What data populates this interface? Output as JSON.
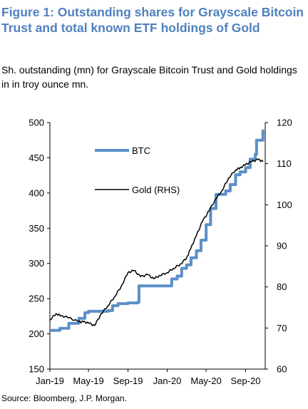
{
  "figure": {
    "title": "Figure 1: Outstanding shares for Grayscale Bitcoin Trust and total known ETF holdings of Gold",
    "subtitle": "Sh. outstanding (mn) for Grayscale Bitcoin Trust and Gold holdings in in troy ounce mn.",
    "source": "Source: Bloomberg, J.P. Morgan."
  },
  "chart_data": {
    "type": "line",
    "x_tick_labels": [
      "Jan-19",
      "May-19",
      "Sep-19",
      "Jan-20",
      "May-20",
      "Sep-20"
    ],
    "y_left": {
      "range": [
        150,
        500
      ],
      "ticks": [
        150,
        200,
        250,
        300,
        350,
        400,
        450,
        500
      ]
    },
    "y_right": {
      "range": [
        60,
        120
      ],
      "ticks": [
        60,
        70,
        80,
        90,
        100,
        110,
        120
      ]
    },
    "legend": {
      "placement": "top-left"
    },
    "grid": false,
    "series": [
      {
        "name": "BTC",
        "axis": "left",
        "color": "#5b8fc7",
        "x": [
          "2019-01-01",
          "2019-02-01",
          "2019-03-01",
          "2019-04-01",
          "2019-04-20",
          "2019-05-01",
          "2019-06-01",
          "2019-07-01",
          "2019-07-15",
          "2019-08-01",
          "2019-09-01",
          "2019-10-01",
          "2019-10-05",
          "2019-11-01",
          "2019-12-01",
          "2020-01-01",
          "2020-01-15",
          "2020-02-01",
          "2020-02-15",
          "2020-03-01",
          "2020-03-15",
          "2020-04-01",
          "2020-04-15",
          "2020-05-01",
          "2020-05-15",
          "2020-06-01",
          "2020-07-01",
          "2020-07-15",
          "2020-08-01",
          "2020-08-15",
          "2020-09-01",
          "2020-09-15",
          "2020-10-01",
          "2020-10-05",
          "2020-10-25"
        ],
        "values": [
          205,
          208,
          215,
          222,
          230,
          232,
          232,
          233,
          240,
          243,
          244,
          245,
          268,
          268,
          268,
          268,
          278,
          282,
          293,
          298,
          308,
          318,
          333,
          355,
          378,
          398,
          403,
          412,
          426,
          430,
          436,
          448,
          455,
          475,
          490
        ]
      },
      {
        "name": "Gold (RHS)",
        "axis": "right",
        "color": "#000000",
        "x": [
          "2019-01-01",
          "2019-01-20",
          "2019-02-05",
          "2019-03-01",
          "2019-04-01",
          "2019-04-15",
          "2019-05-01",
          "2019-05-20",
          "2019-06-10",
          "2019-07-01",
          "2019-07-20",
          "2019-08-10",
          "2019-09-01",
          "2019-09-20",
          "2019-10-10",
          "2019-11-01",
          "2019-11-20",
          "2019-12-10",
          "2020-01-01",
          "2020-01-20",
          "2020-02-10",
          "2020-03-01",
          "2020-03-15",
          "2020-04-01",
          "2020-04-20",
          "2020-05-10",
          "2020-06-01",
          "2020-06-20",
          "2020-07-10",
          "2020-08-01",
          "2020-08-15",
          "2020-09-01",
          "2020-09-20",
          "2020-10-10",
          "2020-10-25"
        ],
        "values": [
          72,
          73.5,
          73,
          72.5,
          71.5,
          71.5,
          71.2,
          70.6,
          73.5,
          75.5,
          77.5,
          80,
          83.5,
          84,
          82.5,
          83,
          82,
          82.8,
          83.5,
          84.5,
          85.5,
          87,
          89.5,
          92.5,
          96,
          98.5,
          101.5,
          103.5,
          106.5,
          108.5,
          109,
          109.8,
          110.5,
          111,
          110.5
        ]
      }
    ]
  }
}
